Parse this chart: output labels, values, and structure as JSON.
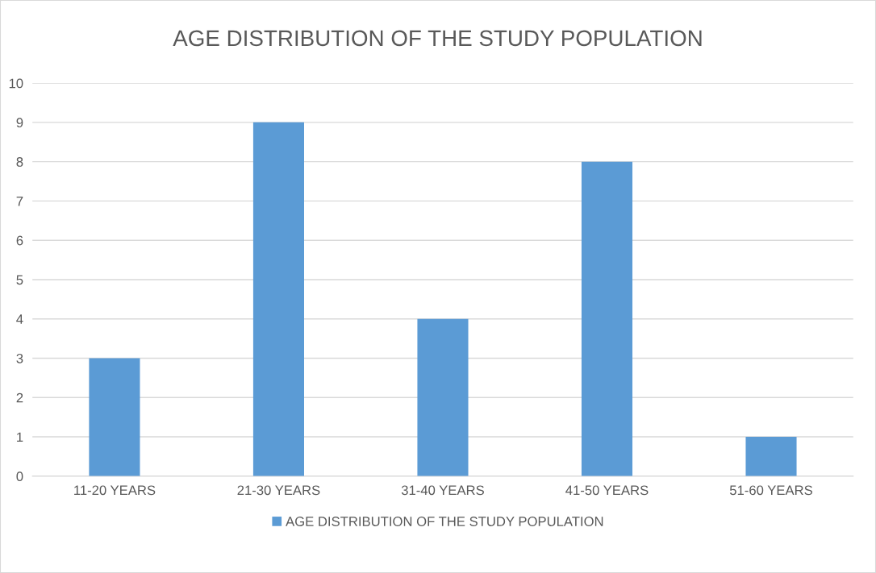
{
  "chart_data": {
    "type": "bar",
    "title": "AGE DISTRIBUTION OF THE STUDY POPULATION",
    "categories": [
      "11-20 YEARS",
      "21-30 YEARS",
      "31-40 YEARS",
      "41-50 YEARS",
      "51-60 YEARS"
    ],
    "series": [
      {
        "name": "AGE DISTRIBUTION OF THE STUDY POPULATION",
        "color": "#5b9bd5",
        "values": [
          3,
          9,
          4,
          8,
          1
        ]
      }
    ],
    "ylim": [
      0,
      10
    ],
    "yticks": [
      0,
      1,
      2,
      3,
      4,
      5,
      6,
      7,
      8,
      9,
      10
    ],
    "grid": "y",
    "legend": "bottom"
  }
}
